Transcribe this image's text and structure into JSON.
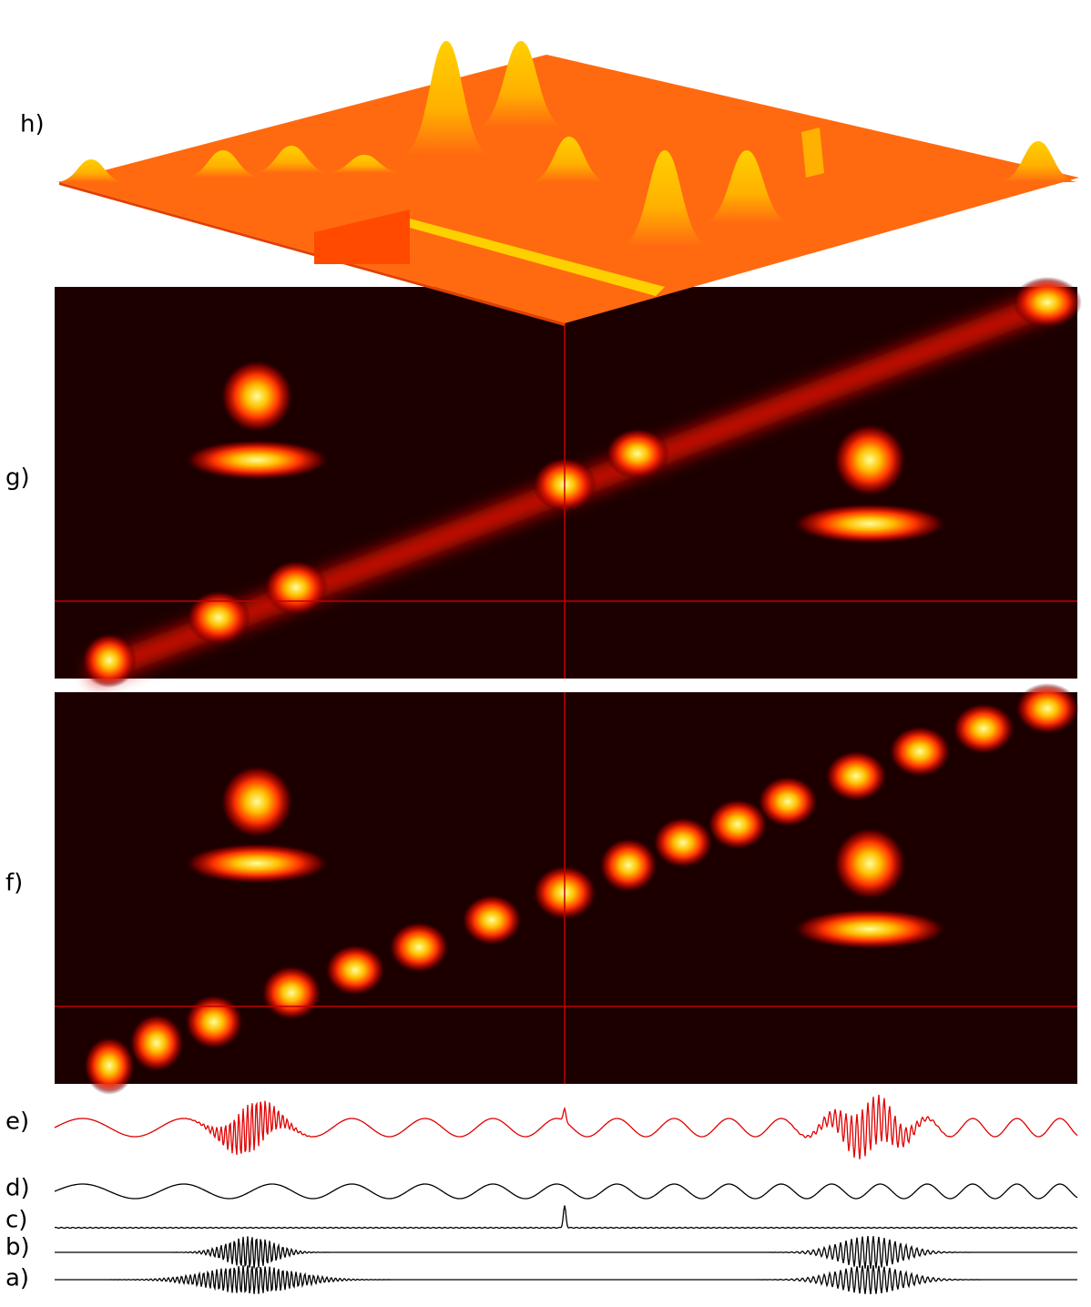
{
  "panels": [
    "h)",
    "g)",
    "f)",
    "e)",
    "d)",
    "c)",
    "b)",
    "a)"
  ]
}
